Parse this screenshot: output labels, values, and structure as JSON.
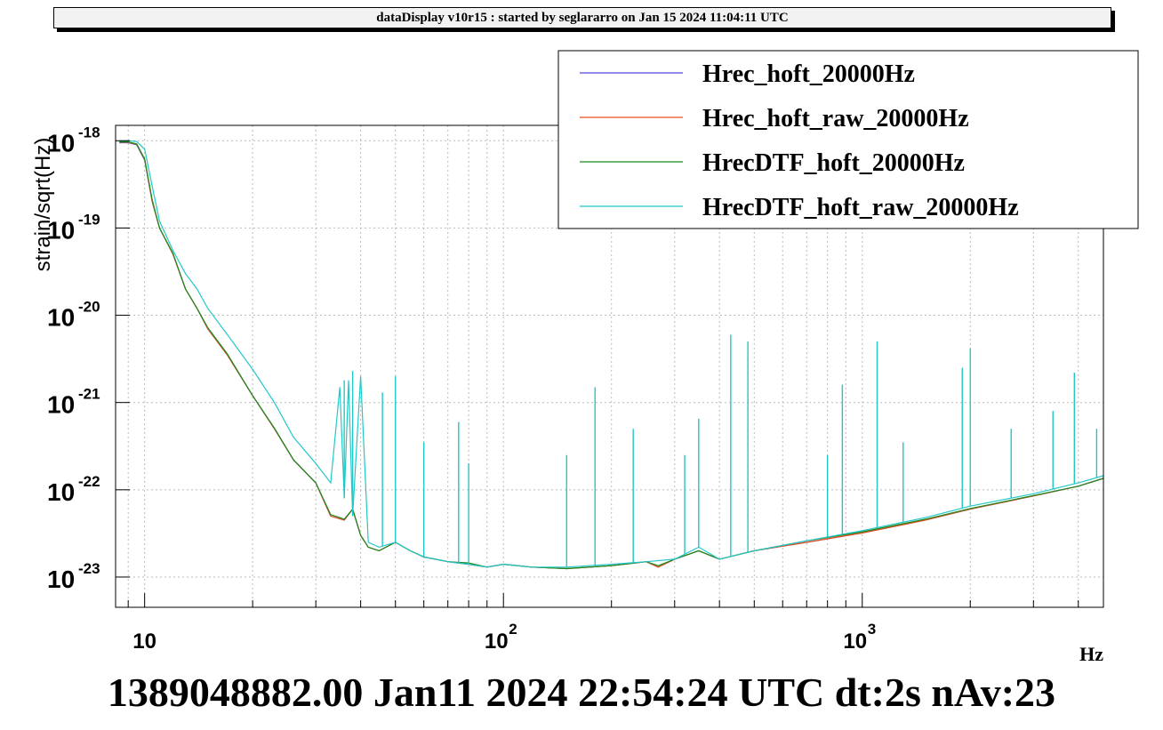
{
  "header": {
    "title": "dataDisplay v10r15 : started by seglararro on Jan 15 2024 11:04:11 UTC"
  },
  "footer": {
    "text": "1389048882.00 Jan11 2024 22:54:24 UTC dt:2s nAv:23"
  },
  "chart_data": {
    "type": "line",
    "title": "",
    "xlabel": "Hz",
    "ylabel": "strain/sqrt(Hz)",
    "xscale": "log",
    "yscale": "log",
    "xlim": [
      8.3,
      4700
    ],
    "ylim": [
      4.5e-24,
      1.5e-18
    ],
    "grid": true,
    "legend_position": "top-right",
    "x_tick_labels": [
      {
        "value": 10,
        "base": "10",
        "exp": ""
      },
      {
        "value": 100,
        "base": "10",
        "exp": "2"
      },
      {
        "value": 1000,
        "base": "10",
        "exp": "3"
      }
    ],
    "y_tick_labels": [
      {
        "value": 1e-18,
        "base": "10",
        "exp": "-18"
      },
      {
        "value": 1e-19,
        "base": "10",
        "exp": "-19"
      },
      {
        "value": 1e-20,
        "base": "10",
        "exp": "-20"
      },
      {
        "value": 1e-21,
        "base": "10",
        "exp": "-21"
      },
      {
        "value": 1e-22,
        "base": "10",
        "exp": "-22"
      },
      {
        "value": 1e-23,
        "base": "10",
        "exp": "-23"
      }
    ],
    "series": [
      {
        "name": "Hrec_hoft_20000Hz",
        "color": "#4a4adc",
        "x": [
          8.5,
          9,
          9.5,
          10,
          10.5,
          11,
          12,
          13,
          14,
          15,
          17,
          20,
          23,
          26,
          30,
          33,
          36,
          38,
          40,
          42,
          45,
          50,
          55,
          60,
          70,
          80,
          90,
          100,
          120,
          150,
          200,
          250,
          270,
          300,
          350,
          400,
          500,
          700,
          1000,
          1500,
          2000,
          3000,
          4000,
          4700
        ],
        "y": [
          9.5e-19,
          9.5e-19,
          9e-19,
          6e-19,
          2e-19,
          1e-19,
          5e-20,
          2e-20,
          1.2e-20,
          7e-21,
          3.5e-21,
          1.2e-21,
          5e-22,
          2.2e-22,
          1.2e-22,
          5e-23,
          4.5e-23,
          6e-23,
          3e-23,
          2.2e-23,
          2e-23,
          2.5e-23,
          2e-23,
          1.7e-23,
          1.5e-23,
          1.4e-23,
          1.3e-23,
          1.4e-23,
          1.3e-23,
          1.25e-23,
          1.35e-23,
          1.5e-23,
          1.3e-23,
          1.6e-23,
          2e-23,
          1.6e-23,
          2e-23,
          2.5e-23,
          3.2e-23,
          4.5e-23,
          6e-23,
          8.5e-23,
          1.1e-22,
          1.35e-22
        ]
      },
      {
        "name": "Hrec_hoft_raw_20000Hz",
        "color": "#e8501e",
        "x": [
          8.5,
          9,
          9.5,
          10,
          10.5,
          11,
          12,
          13,
          14,
          15,
          17,
          20,
          23,
          26,
          30,
          33,
          36,
          38,
          40,
          42,
          45,
          50,
          55,
          60,
          70,
          80,
          90,
          100,
          120,
          150,
          200,
          250,
          270,
          300,
          350,
          400,
          500,
          700,
          1000,
          1500,
          2000,
          3000,
          4000,
          4700
        ],
        "y": [
          9.6e-19,
          9.6e-19,
          9.1e-19,
          6.1e-19,
          2e-19,
          1e-19,
          5e-20,
          2e-20,
          1.2e-20,
          7e-21,
          3.5e-21,
          1.2e-21,
          5e-22,
          2.2e-22,
          1.2e-22,
          5e-23,
          4.5e-23,
          6e-23,
          3e-23,
          2.2e-23,
          2e-23,
          2.5e-23,
          2e-23,
          1.7e-23,
          1.5e-23,
          1.4e-23,
          1.3e-23,
          1.4e-23,
          1.3e-23,
          1.25e-23,
          1.35e-23,
          1.5e-23,
          1.3e-23,
          1.6e-23,
          2e-23,
          1.6e-23,
          2e-23,
          2.5e-23,
          3.2e-23,
          4.5e-23,
          6e-23,
          8.5e-23,
          1.1e-22,
          1.35e-22
        ]
      },
      {
        "name": "HrecDTF_hoft_20000Hz",
        "color": "#1a8a1a",
        "x": [
          8.5,
          9,
          9.5,
          10,
          10.5,
          11,
          12,
          13,
          14,
          15,
          17,
          20,
          23,
          26,
          30,
          33,
          36,
          38,
          40,
          42,
          45,
          50,
          55,
          60,
          70,
          80,
          90,
          100,
          120,
          150,
          200,
          250,
          270,
          300,
          350,
          400,
          500,
          700,
          1000,
          1500,
          2000,
          3000,
          4000,
          4700
        ],
        "y": [
          9.7e-19,
          9.7e-19,
          9.2e-19,
          6.2e-19,
          2.1e-19,
          1e-19,
          5.1e-20,
          2e-20,
          1.2e-20,
          7.2e-21,
          3.6e-21,
          1.2e-21,
          5.1e-22,
          2.2e-22,
          1.2e-22,
          5.2e-23,
          4.6e-23,
          6e-23,
          3e-23,
          2.2e-23,
          2e-23,
          2.5e-23,
          2e-23,
          1.7e-23,
          1.5e-23,
          1.45e-23,
          1.3e-23,
          1.4e-23,
          1.3e-23,
          1.25e-23,
          1.35e-23,
          1.5e-23,
          1.35e-23,
          1.6e-23,
          2e-23,
          1.6e-23,
          2e-23,
          2.6e-23,
          3.3e-23,
          4.6e-23,
          6.1e-23,
          8.6e-23,
          1.1e-22,
          1.35e-22
        ]
      },
      {
        "name": "HrecDTF_hoft_raw_20000Hz",
        "color": "#22c8c8",
        "x": [
          8.5,
          9,
          9.5,
          10,
          10.5,
          11,
          12,
          13,
          14,
          15,
          17,
          20,
          23,
          26,
          30,
          33,
          35,
          36,
          37,
          38,
          40,
          42,
          45,
          50,
          55,
          60,
          70,
          80,
          90,
          100,
          120,
          150,
          200,
          250,
          300,
          350,
          400,
          500,
          700,
          1000,
          1500,
          2000,
          3000,
          4000,
          4700
        ],
        "y": [
          1e-18,
          1e-18,
          9.8e-19,
          8e-19,
          3e-19,
          1.2e-19,
          5.5e-20,
          3e-20,
          2e-20,
          1.2e-20,
          6e-21,
          2.4e-21,
          1e-21,
          4e-22,
          2e-22,
          1.2e-22,
          1.5e-21,
          8e-23,
          1.8e-21,
          5e-23,
          2e-21,
          2.5e-23,
          2.2e-23,
          2.5e-23,
          2e-23,
          1.7e-23,
          1.5e-23,
          1.4e-23,
          1.3e-23,
          1.4e-23,
          1.3e-23,
          1.3e-23,
          1.4e-23,
          1.5e-23,
          1.6e-23,
          2.2e-23,
          1.6e-23,
          2e-23,
          2.6e-23,
          3.4e-23,
          4.8e-23,
          6.5e-23,
          9e-23,
          1.2e-22,
          1.45e-22
        ]
      }
    ],
    "spikes": [
      {
        "x": 36,
        "y": 1.8e-21
      },
      {
        "x": 38,
        "y": 2.3e-21
      },
      {
        "x": 46,
        "y": 1.3e-21
      },
      {
        "x": 50,
        "y": 2e-21
      },
      {
        "x": 60,
        "y": 3.5e-22
      },
      {
        "x": 75,
        "y": 6e-22
      },
      {
        "x": 80,
        "y": 2e-22
      },
      {
        "x": 150,
        "y": 2.5e-22
      },
      {
        "x": 180,
        "y": 1.5e-21
      },
      {
        "x": 230,
        "y": 5e-22
      },
      {
        "x": 320,
        "y": 2.5e-22
      },
      {
        "x": 350,
        "y": 6.5e-22
      },
      {
        "x": 430,
        "y": 6e-21
      },
      {
        "x": 480,
        "y": 5e-21
      },
      {
        "x": 800,
        "y": 2.5e-22
      },
      {
        "x": 880,
        "y": 1.6e-21
      },
      {
        "x": 1100,
        "y": 5e-21
      },
      {
        "x": 1300,
        "y": 3.5e-22
      },
      {
        "x": 1900,
        "y": 2.5e-21
      },
      {
        "x": 2000,
        "y": 4.2e-21
      },
      {
        "x": 2600,
        "y": 5e-22
      },
      {
        "x": 3400,
        "y": 8e-22
      },
      {
        "x": 3900,
        "y": 2.2e-21
      },
      {
        "x": 4500,
        "y": 5e-22
      }
    ]
  }
}
